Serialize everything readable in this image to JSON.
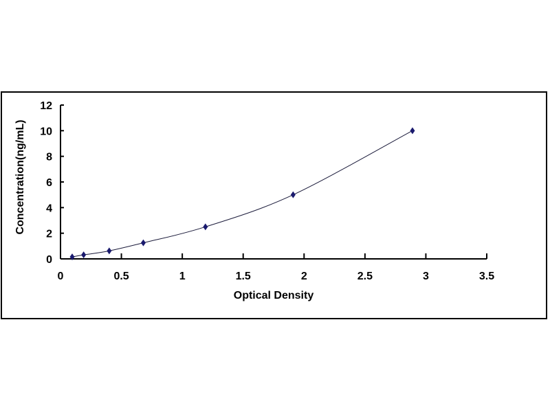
{
  "chart_data": {
    "type": "scatter",
    "title": "",
    "xlabel": "Optical Density",
    "ylabel": "Concentration(ng/mL)",
    "xlim": [
      0,
      3.5
    ],
    "ylim": [
      0,
      12
    ],
    "xticks": [
      "0",
      "0.5",
      "1",
      "1.5",
      "2",
      "2.5",
      "3",
      "3.5"
    ],
    "yticks": [
      "0",
      "2",
      "4",
      "6",
      "8",
      "10",
      "12"
    ],
    "grid": false,
    "legend": "none",
    "marker": "diamond",
    "trendline": "smooth curve",
    "color": "#1a1a6e",
    "series": [
      {
        "x": [
          0.096,
          0.19,
          0.4,
          0.68,
          1.19,
          1.91,
          2.89
        ],
        "y": [
          0.156,
          0.312,
          0.625,
          1.25,
          2.5,
          5,
          10
        ]
      }
    ]
  }
}
